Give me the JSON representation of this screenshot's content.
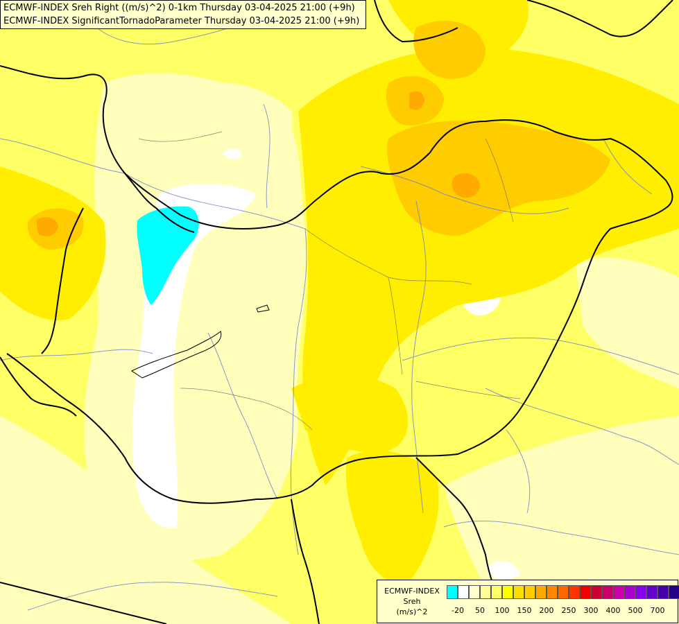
{
  "title": {
    "line1": "ECMWF-INDEX Sreh Right ((m/s)^2) 0-1km Thursday 03-04-2025 21:00 (+9h)",
    "line2": "ECMWF-INDEX SignificantTornadoParameter Thursday 03-04-2025 21:00 (+9h)"
  },
  "legend": {
    "line1": "ECMWF-INDEX",
    "line2": "Sreh",
    "line3": "(m/s)^2",
    "colors": [
      "#00ffff",
      "#ffffff",
      "#ffffcc",
      "#ffff99",
      "#ffff66",
      "#ffff00",
      "#ffdd00",
      "#ffcc00",
      "#ffaa00",
      "#ff8800",
      "#ff6600",
      "#ff3300",
      "#ee0000",
      "#cc0033",
      "#cc0066",
      "#cc00aa",
      "#aa00cc",
      "#8800ee",
      "#6600cc",
      "#4400aa",
      "#220088"
    ],
    "tick_labels": [
      "-20",
      "50",
      "100",
      "150",
      "200",
      "250",
      "300",
      "400",
      "500",
      "700"
    ]
  },
  "colors": {
    "cyan": "#00ffff",
    "white": "#ffffff",
    "pale": "#ffffbb",
    "light": "#ffff88",
    "yellow": "#ffff33",
    "bright": "#ffee00",
    "gold": "#ffcc00",
    "orange": "#ffaa00"
  }
}
